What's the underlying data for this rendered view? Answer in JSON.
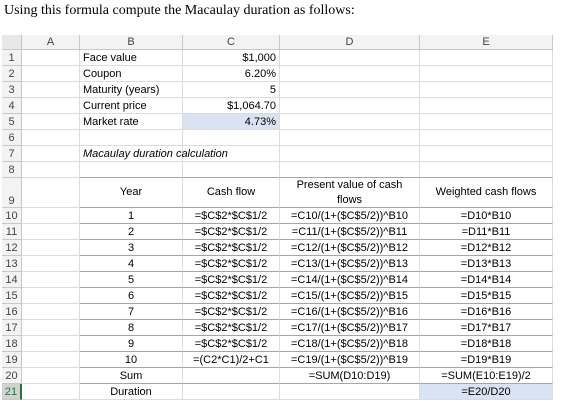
{
  "intro": "Using this formula compute the Macaulay duration as follows:",
  "columns": [
    "A",
    "B",
    "C",
    "D",
    "E"
  ],
  "rows": [
    {
      "n": 1,
      "cells": {
        "B": "Face value",
        "C": "$1,000"
      }
    },
    {
      "n": 2,
      "cells": {
        "B": "Coupon",
        "C": "6.20%"
      }
    },
    {
      "n": 3,
      "cells": {
        "B": "Maturity (years)",
        "C": "5"
      }
    },
    {
      "n": 4,
      "cells": {
        "B": "Current price",
        "C": "$1,064.70"
      }
    },
    {
      "n": 5,
      "cells": {
        "B": "Market rate",
        "C": "4.73%"
      }
    },
    {
      "n": 6,
      "cells": {}
    },
    {
      "n": 7,
      "cells": {
        "B": "Macaulay duration calculation"
      }
    },
    {
      "n": 8,
      "cells": {}
    },
    {
      "n": 9,
      "cells": {
        "B": "Year",
        "C": "Cash flow",
        "D": "Present value of cash flows",
        "E": "Weighted cash flows"
      }
    },
    {
      "n": 10,
      "cells": {
        "B": "1",
        "C": "=$C$2*$C$1/2",
        "D": "=C10/(1+($C$5/2))^B10",
        "E": "=D10*B10"
      }
    },
    {
      "n": 11,
      "cells": {
        "B": "2",
        "C": "=$C$2*$C$1/2",
        "D": "=C11/(1+($C$5/2))^B11",
        "E": "=D11*B11"
      }
    },
    {
      "n": 12,
      "cells": {
        "B": "3",
        "C": "=$C$2*$C$1/2",
        "D": "=C12/(1+($C$5/2))^B12",
        "E": "=D12*B12"
      }
    },
    {
      "n": 13,
      "cells": {
        "B": "4",
        "C": "=$C$2*$C$1/2",
        "D": "=C13/(1+($C$5/2))^B13",
        "E": "=D13*B13"
      }
    },
    {
      "n": 14,
      "cells": {
        "B": "5",
        "C": "=$C$2*$C$1/2",
        "D": "=C14/(1+($C$5/2))^B14",
        "E": "=D14*B14"
      }
    },
    {
      "n": 15,
      "cells": {
        "B": "6",
        "C": "=$C$2*$C$1/2",
        "D": "=C15/(1+($C$5/2))^B15",
        "E": "=D15*B15"
      }
    },
    {
      "n": 16,
      "cells": {
        "B": "7",
        "C": "=$C$2*$C$1/2",
        "D": "=C16/(1+($C$5/2))^B16",
        "E": "=D16*B16"
      }
    },
    {
      "n": 17,
      "cells": {
        "B": "8",
        "C": "=$C$2*$C$1/2",
        "D": "=C17/(1+($C$5/2))^B17",
        "E": "=D17*B17"
      }
    },
    {
      "n": 18,
      "cells": {
        "B": "9",
        "C": "=$C$2*$C$1/2",
        "D": "=C18/(1+($C$5/2))^B18",
        "E": "=D18*B18"
      }
    },
    {
      "n": 19,
      "cells": {
        "B": "10",
        "C": "=(C2*C1)/2+C1",
        "D": "=C19/(1+($C$5/2))^B19",
        "E": "=D19*B19"
      }
    },
    {
      "n": 20,
      "cells": {
        "B": "Sum",
        "D": "=SUM(D10:D19)",
        "E": "=SUM(E10:E19)/2"
      }
    },
    {
      "n": 21,
      "cells": {
        "B": "Duration",
        "E": "=E20/D20"
      }
    }
  ]
}
